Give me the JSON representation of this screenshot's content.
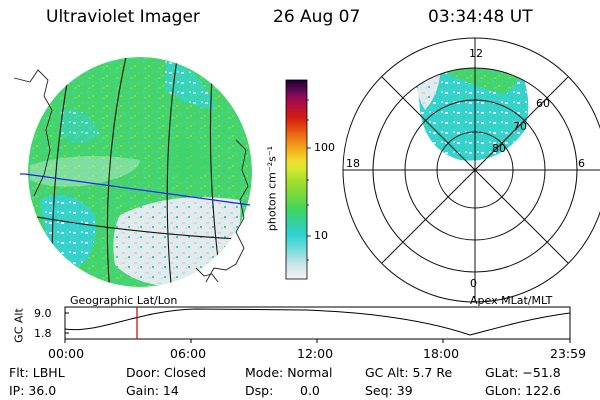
{
  "header": {
    "instrument": "Ultraviolet Imager",
    "date": "26 Aug 07",
    "time": "03:34:48 UT"
  },
  "colorbar": {
    "label": "photon cm⁻²s⁻¹",
    "ticks": [
      "100",
      "10"
    ],
    "colors": [
      "#f4f4f4",
      "#cde4ea",
      "#7fdcdc",
      "#2ed3d3",
      "#35cf9a",
      "#3fd65c",
      "#7cd93a",
      "#a9df2c",
      "#d3e830",
      "#f0e030",
      "#f5b520",
      "#f08a18",
      "#e84f10",
      "#d41c10",
      "#b3103c",
      "#8a0a5a",
      "#50064f",
      "#1a0330"
    ]
  },
  "left_panel": {
    "caption": "Geographic Lat/Lon"
  },
  "right_panel": {
    "caption": "Apex MLat/MLT",
    "mlt_labels": [
      "12",
      "18",
      "6",
      "0"
    ],
    "mlat_labels": [
      "60",
      "70",
      "80"
    ]
  },
  "altitude_plot": {
    "ylabel": "GC Alt",
    "yticks": [
      "9.0",
      "1.8"
    ],
    "xticks": [
      "00:00",
      "06:00",
      "12:00",
      "18:00",
      "23:59"
    ],
    "marker_color": "#cc0000"
  },
  "info": {
    "flt": "Flt: LBHL",
    "ip": "IP: 36.0",
    "door": "Door: Closed",
    "gain": "Gain: 14",
    "mode": "Mode: Normal",
    "dsp": "Dsp:",
    "dsp_value": "0.0",
    "gcalt": "GC Alt: 5.7 Re",
    "seq": "Seq: 39",
    "glat": "GLat: −51.8",
    "glon": "GLon: 122.6"
  },
  "colors": {
    "aurora_green": "#3ed66a",
    "aurora_cyan": "#38d6c8",
    "pale": "#e6ecee",
    "grid_blue": "#1a1aff"
  }
}
